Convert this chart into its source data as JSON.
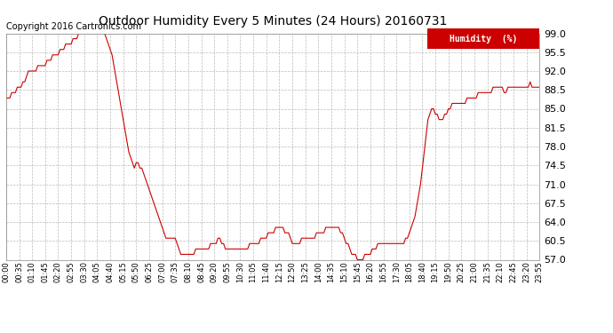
{
  "title": "Outdoor Humidity Every 5 Minutes (24 Hours) 20160731",
  "copyright": "Copyright 2016 Cartronics.com",
  "legend_label": "Humidity  (%)",
  "line_color": "#cc0000",
  "background_color": "#ffffff",
  "grid_color": "#aaaaaa",
  "ylim": [
    57.0,
    99.0
  ],
  "yticks": [
    57.0,
    60.5,
    64.0,
    67.5,
    71.0,
    74.5,
    78.0,
    81.5,
    85.0,
    88.5,
    92.0,
    95.5,
    99.0
  ],
  "figsize": [
    6.9,
    3.75
  ],
  "dpi": 100,
  "humidity_data": [
    87,
    87,
    87,
    88,
    88,
    88,
    89,
    89,
    89,
    90,
    90,
    91,
    92,
    92,
    92,
    92,
    92,
    93,
    93,
    93,
    93,
    93,
    94,
    94,
    94,
    95,
    95,
    95,
    95,
    96,
    96,
    96,
    97,
    97,
    97,
    97,
    98,
    98,
    98,
    99,
    99,
    99,
    99,
    99,
    99,
    99,
    99,
    99,
    99,
    99,
    99,
    99,
    99,
    99,
    98,
    97,
    96,
    95,
    93,
    91,
    89,
    87,
    85,
    83,
    81,
    79,
    77,
    76,
    75,
    74,
    75,
    75,
    74,
    74,
    73,
    72,
    71,
    70,
    69,
    68,
    67,
    66,
    65,
    64,
    63,
    62,
    61,
    61,
    61,
    61,
    61,
    61,
    60,
    59,
    58,
    58,
    58,
    58,
    58,
    58,
    58,
    58,
    59,
    59,
    59,
    59,
    59,
    59,
    59,
    59,
    60,
    60,
    60,
    60,
    61,
    61,
    60,
    60,
    59,
    59,
    59,
    59,
    59,
    59,
    59,
    59,
    59,
    59,
    59,
    59,
    59,
    60,
    60,
    60,
    60,
    60,
    60,
    61,
    61,
    61,
    61,
    62,
    62,
    62,
    62,
    63,
    63,
    63,
    63,
    63,
    62,
    62,
    62,
    61,
    60,
    60,
    60,
    60,
    60,
    61,
    61,
    61,
    61,
    61,
    61,
    61,
    61,
    62,
    62,
    62,
    62,
    62,
    63,
    63,
    63,
    63,
    63,
    63,
    63,
    63,
    62,
    62,
    61,
    60,
    60,
    59,
    58,
    58,
    58,
    57,
    57,
    57,
    57,
    58,
    58,
    58,
    58,
    59,
    59,
    59,
    60,
    60,
    60,
    60,
    60,
    60,
    60,
    60,
    60,
    60,
    60,
    60,
    60,
    60,
    60,
    61,
    61,
    62,
    63,
    64,
    65,
    67,
    69,
    71,
    74,
    77,
    80,
    83,
    84,
    85,
    85,
    84,
    84,
    83,
    83,
    83,
    84,
    84,
    85,
    85,
    86,
    86,
    86,
    86,
    86,
    86,
    86,
    86,
    87,
    87,
    87,
    87,
    87,
    87,
    88,
    88,
    88,
    88,
    88,
    88,
    88,
    88,
    89,
    89,
    89,
    89,
    89,
    89,
    88,
    88,
    89,
    89,
    89,
    89,
    89,
    89,
    89,
    89,
    89,
    89,
    89,
    89,
    90,
    89,
    89,
    89,
    89,
    89,
    88
  ]
}
